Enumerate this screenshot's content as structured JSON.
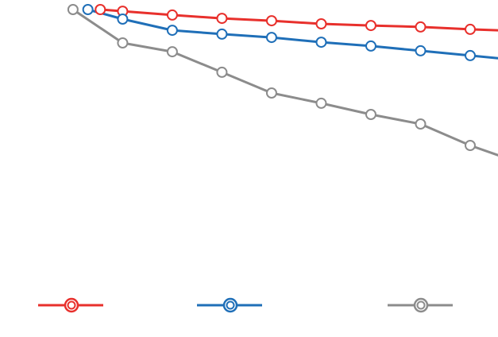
{
  "chart_data": {
    "type": "line",
    "xlim": [
      -1.47,
      8.56
    ],
    "ylim": [
      0,
      100
    ],
    "grid": false,
    "series": [
      {
        "color": "#e8302c",
        "x": [
          0.55,
          1,
          2,
          3,
          4,
          5,
          6,
          7,
          8,
          9
        ],
        "values": [
          100,
          99.3,
          97.7,
          96.3,
          95.3,
          94,
          93.3,
          92.7,
          91.7,
          91
        ]
      },
      {
        "color": "#1f6fb8",
        "x": [
          0.3,
          1,
          2,
          3,
          4,
          5,
          6,
          7,
          8,
          9
        ],
        "values": [
          100,
          96,
          91.3,
          89.7,
          88.3,
          86.3,
          84.7,
          82.7,
          80.7,
          78.7
        ]
      },
      {
        "color": "#8c8c8c",
        "x": [
          0,
          1,
          2,
          3,
          4,
          5,
          6,
          7,
          8,
          9
        ],
        "values": [
          100,
          86,
          82.3,
          73.7,
          65,
          60.7,
          56,
          52,
          43,
          35.7
        ]
      }
    ]
  }
}
